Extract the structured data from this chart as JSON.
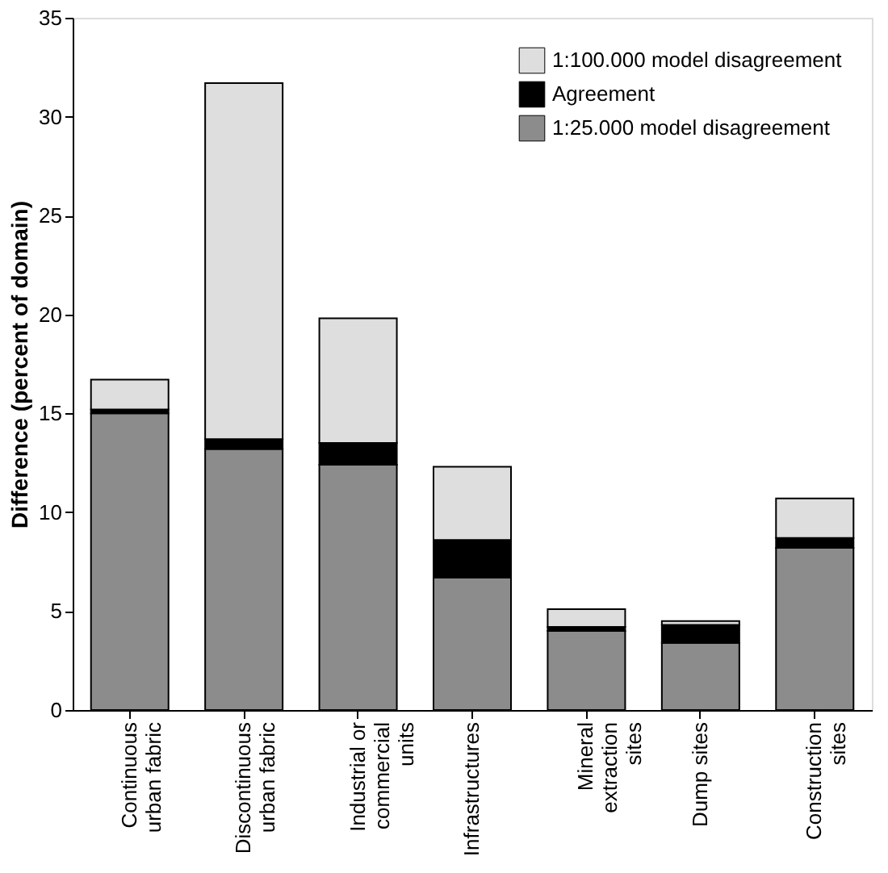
{
  "chart_data": {
    "type": "bar",
    "stacked": true,
    "ylabel": "Difference (percent of domain)",
    "categories": [
      "Continuous urban fabric",
      "Discontinuous urban fabric",
      "Industrial or commercial units",
      "Infrastructures",
      "Mineral extraction sites",
      "Dump sites",
      "Construction sites"
    ],
    "series": [
      {
        "name": "1:25.000 model disagreement",
        "color": "#8c8c8c",
        "values": [
          15.0,
          13.2,
          12.4,
          6.7,
          4.0,
          3.4,
          8.2
        ]
      },
      {
        "name": "Agreement",
        "color": "#000000",
        "values": [
          0.2,
          0.5,
          1.1,
          1.9,
          0.2,
          0.9,
          0.5
        ]
      },
      {
        "name": "1:100.000 model disagreement",
        "color": "#dedede",
        "values": [
          1.5,
          18.0,
          6.3,
          3.7,
          0.9,
          0.2,
          2.0
        ]
      }
    ],
    "ylim": [
      0,
      35
    ],
    "yticks": [
      0,
      5,
      10,
      15,
      20,
      25,
      30,
      35
    ],
    "grid": false,
    "legend": "top right"
  }
}
